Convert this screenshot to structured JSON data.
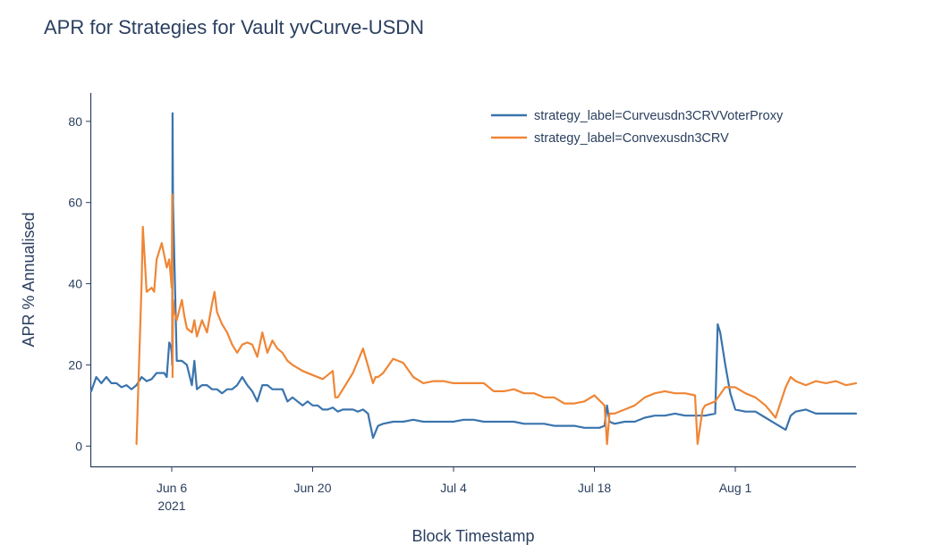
{
  "chart_data": {
    "type": "line",
    "title": "APR for Strategies for Vault yvCurve-USDN",
    "xlabel": "Block Timestamp",
    "ylabel": "APR % Annualised",
    "x_range": [
      "2021-05-29",
      "2021-08-13"
    ],
    "ylim": [
      -5,
      87
    ],
    "y_ticks": [
      0,
      20,
      40,
      60,
      80
    ],
    "x_ticks": [
      {
        "date": "2021-06-06",
        "label": "Jun 6",
        "sublabel": "2021"
      },
      {
        "date": "2021-06-20",
        "label": "Jun 20",
        "sublabel": ""
      },
      {
        "date": "2021-07-04",
        "label": "Jul 4",
        "sublabel": ""
      },
      {
        "date": "2021-07-18",
        "label": "Jul 18",
        "sublabel": ""
      },
      {
        "date": "2021-08-01",
        "label": "Aug 1",
        "sublabel": ""
      }
    ],
    "grid": false,
    "legend_position": "top-right",
    "series": [
      {
        "name": "strategy_label=Curveusdn3CRVVoterProxy",
        "color": "#3a74ad",
        "x": [
          "2021-05-29 00:00",
          "2021-05-29 12:00",
          "2021-05-30 00:00",
          "2021-05-30 12:00",
          "2021-05-31 00:00",
          "2021-05-31 12:00",
          "2021-06-01 00:00",
          "2021-06-01 12:00",
          "2021-06-02 00:00",
          "2021-06-02 12:00",
          "2021-06-03 00:00",
          "2021-06-03 12:00",
          "2021-06-04 00:00",
          "2021-06-04 12:00",
          "2021-06-05 00:00",
          "2021-06-05 06:00",
          "2021-06-05 12:00",
          "2021-06-05 18:00",
          "2021-06-05 22:00",
          "2021-06-06 00:00",
          "2021-06-06 01:00",
          "2021-06-06 02:00",
          "2021-06-06 03:00",
          "2021-06-06 12:00",
          "2021-06-07 00:00",
          "2021-06-07 12:00",
          "2021-06-08 00:00",
          "2021-06-08 06:00",
          "2021-06-08 12:00",
          "2021-06-09 00:00",
          "2021-06-09 12:00",
          "2021-06-10 00:00",
          "2021-06-10 12:00",
          "2021-06-11 00:00",
          "2021-06-11 12:00",
          "2021-06-12 00:00",
          "2021-06-12 12:00",
          "2021-06-13 00:00",
          "2021-06-13 12:00",
          "2021-06-14 00:00",
          "2021-06-14 12:00",
          "2021-06-15 00:00",
          "2021-06-15 12:00",
          "2021-06-16 00:00",
          "2021-06-16 12:00",
          "2021-06-17 00:00",
          "2021-06-17 12:00",
          "2021-06-18 00:00",
          "2021-06-18 12:00",
          "2021-06-19 00:00",
          "2021-06-19 12:00",
          "2021-06-20 00:00",
          "2021-06-20 12:00",
          "2021-06-21 00:00",
          "2021-06-21 12:00",
          "2021-06-22 00:00",
          "2021-06-22 12:00",
          "2021-06-23 00:00",
          "2021-06-23 12:00",
          "2021-06-24 00:00",
          "2021-06-24 12:00",
          "2021-06-25 00:00",
          "2021-06-25 12:00",
          "2021-06-26 00:00",
          "2021-06-26 12:00",
          "2021-06-27 00:00",
          "2021-06-28 00:00",
          "2021-06-29 00:00",
          "2021-06-30 00:00",
          "2021-07-01 00:00",
          "2021-07-02 00:00",
          "2021-07-03 00:00",
          "2021-07-04 00:00",
          "2021-07-05 00:00",
          "2021-07-06 00:00",
          "2021-07-07 00:00",
          "2021-07-08 00:00",
          "2021-07-09 00:00",
          "2021-07-10 00:00",
          "2021-07-11 00:00",
          "2021-07-12 00:00",
          "2021-07-13 00:00",
          "2021-07-14 00:00",
          "2021-07-15 00:00",
          "2021-07-16 00:00",
          "2021-07-17 00:00",
          "2021-07-17 12:00",
          "2021-07-18 00:00",
          "2021-07-18 12:00",
          "2021-07-19 00:00",
          "2021-07-19 06:00",
          "2021-07-19 12:00",
          "2021-07-20 00:00",
          "2021-07-21 00:00",
          "2021-07-22 00:00",
          "2021-07-23 00:00",
          "2021-07-24 00:00",
          "2021-07-25 00:00",
          "2021-07-26 00:00",
          "2021-07-27 00:00",
          "2021-07-28 00:00",
          "2021-07-29 00:00",
          "2021-07-30 00:00",
          "2021-07-30 06:00",
          "2021-07-30 12:00",
          "2021-07-31 00:00",
          "2021-07-31 12:00",
          "2021-08-01 00:00",
          "2021-08-02 00:00",
          "2021-08-03 00:00",
          "2021-08-04 00:00",
          "2021-08-05 00:00",
          "2021-08-06 00:00",
          "2021-08-06 12:00",
          "2021-08-07 00:00",
          "2021-08-08 00:00",
          "2021-08-09 00:00",
          "2021-08-10 00:00",
          "2021-08-11 00:00",
          "2021-08-12 00:00",
          "2021-08-13 00:00"
        ],
        "y": [
          13.5,
          17,
          15.5,
          17,
          15.5,
          15.5,
          14.5,
          15,
          14,
          15,
          17,
          16,
          16.5,
          18,
          18,
          18,
          17,
          25.5,
          24.5,
          23,
          20,
          82,
          60,
          21,
          21,
          20,
          15,
          21,
          14,
          15,
          15,
          14,
          14,
          13,
          14,
          14,
          15,
          17,
          15,
          13.5,
          11,
          15,
          15,
          14,
          14,
          14,
          11,
          12,
          11,
          10,
          11,
          10,
          10,
          9,
          9,
          9.5,
          8.5,
          9,
          9,
          9,
          8.5,
          9,
          8,
          2,
          5,
          5.5,
          6,
          6,
          6.5,
          6,
          6,
          6,
          6,
          6.5,
          6.5,
          6,
          6,
          6,
          6,
          5.5,
          5.5,
          5.5,
          5,
          5,
          5,
          4.5,
          4.5,
          4.5,
          4.5,
          5,
          10,
          6,
          5.5,
          6,
          6,
          7,
          7.5,
          7.5,
          8,
          7.5,
          7.5,
          7.5,
          8,
          30,
          28,
          20,
          13,
          9,
          8.5,
          8.5,
          7,
          5.5,
          4,
          7.5,
          8.5,
          9,
          8,
          8,
          8,
          8,
          8
        ]
      },
      {
        "name": "strategy_label=Convexusdn3CRV",
        "color": "#ef8636",
        "x": [
          "2021-06-02 12:00",
          "2021-06-03 00:00",
          "2021-06-03 03:00",
          "2021-06-03 12:00",
          "2021-06-04 00:00",
          "2021-06-04 06:00",
          "2021-06-04 12:00",
          "2021-06-05 00:00",
          "2021-06-05 06:00",
          "2021-06-05 12:00",
          "2021-06-05 18:00",
          "2021-06-06 00:00",
          "2021-06-06 01:00",
          "2021-06-06 02:00",
          "2021-06-06 03:00",
          "2021-06-06 06:00",
          "2021-06-06 12:00",
          "2021-06-07 00:00",
          "2021-06-07 06:00",
          "2021-06-07 12:00",
          "2021-06-08 00:00",
          "2021-06-08 06:00",
          "2021-06-08 12:00",
          "2021-06-09 00:00",
          "2021-06-09 12:00",
          "2021-06-10 00:00",
          "2021-06-10 06:00",
          "2021-06-10 12:00",
          "2021-06-11 00:00",
          "2021-06-11 12:00",
          "2021-06-12 00:00",
          "2021-06-12 12:00",
          "2021-06-13 00:00",
          "2021-06-13 12:00",
          "2021-06-14 00:00",
          "2021-06-14 12:00",
          "2021-06-15 00:00",
          "2021-06-15 12:00",
          "2021-06-16 00:00",
          "2021-06-16 12:00",
          "2021-06-17 00:00",
          "2021-06-17 12:00",
          "2021-06-18 00:00",
          "2021-06-19 00:00",
          "2021-06-20 00:00",
          "2021-06-21 00:00",
          "2021-06-22 00:00",
          "2021-06-22 06:00",
          "2021-06-22 12:00",
          "2021-06-23 00:00",
          "2021-06-24 00:00",
          "2021-06-25 00:00",
          "2021-06-26 00:00",
          "2021-06-26 06:00",
          "2021-06-26 12:00",
          "2021-06-27 00:00",
          "2021-06-28 00:00",
          "2021-06-29 00:00",
          "2021-06-30 00:00",
          "2021-07-01 00:00",
          "2021-07-02 00:00",
          "2021-07-03 00:00",
          "2021-07-04 00:00",
          "2021-07-05 00:00",
          "2021-07-06 00:00",
          "2021-07-07 00:00",
          "2021-07-08 00:00",
          "2021-07-09 00:00",
          "2021-07-10 00:00",
          "2021-07-11 00:00",
          "2021-07-12 00:00",
          "2021-07-13 00:00",
          "2021-07-14 00:00",
          "2021-07-15 00:00",
          "2021-07-16 00:00",
          "2021-07-17 00:00",
          "2021-07-18 00:00",
          "2021-07-19 00:00",
          "2021-07-19 06:00",
          "2021-07-19 12:00",
          "2021-07-20 00:00",
          "2021-07-21 00:00",
          "2021-07-22 00:00",
          "2021-07-23 00:00",
          "2021-07-24 00:00",
          "2021-07-25 00:00",
          "2021-07-26 00:00",
          "2021-07-27 00:00",
          "2021-07-28 00:00",
          "2021-07-28 06:00",
          "2021-07-28 18:00",
          "2021-07-29 00:00",
          "2021-07-30 00:00",
          "2021-07-31 00:00",
          "2021-08-01 00:00",
          "2021-08-02 00:00",
          "2021-08-03 00:00",
          "2021-08-04 00:00",
          "2021-08-05 00:00",
          "2021-08-06 00:00",
          "2021-08-06 12:00",
          "2021-08-07 00:00",
          "2021-08-08 00:00",
          "2021-08-09 00:00",
          "2021-08-10 00:00",
          "2021-08-11 00:00",
          "2021-08-12 00:00",
          "2021-08-13 00:00"
        ],
        "y": [
          0.5,
          40,
          54,
          38,
          39,
          38,
          46,
          50,
          47,
          44,
          46,
          39,
          62,
          17,
          36,
          33,
          31,
          36,
          32,
          29,
          28,
          31,
          27,
          31,
          28,
          35,
          38,
          33,
          30,
          28,
          25,
          23,
          25,
          25.5,
          25,
          22,
          28,
          23,
          26,
          24,
          23,
          21,
          20,
          18.5,
          17.5,
          16.5,
          18.5,
          12,
          12,
          14,
          18,
          24,
          15.5,
          17,
          17,
          18,
          21.5,
          20.5,
          17,
          15.5,
          16,
          16,
          15.5,
          15.5,
          15.5,
          15.5,
          13.5,
          13.5,
          14,
          13,
          13,
          12,
          12,
          10.5,
          10.5,
          11,
          12.5,
          10,
          0.5,
          8,
          8,
          9,
          10,
          12,
          13,
          13.5,
          13,
          13,
          12.5,
          0.5,
          9,
          10,
          11,
          14.5,
          14.5,
          13,
          12,
          10,
          7,
          14.5,
          17,
          16,
          15,
          16,
          15.5,
          16,
          15,
          15.5
        ]
      }
    ]
  }
}
